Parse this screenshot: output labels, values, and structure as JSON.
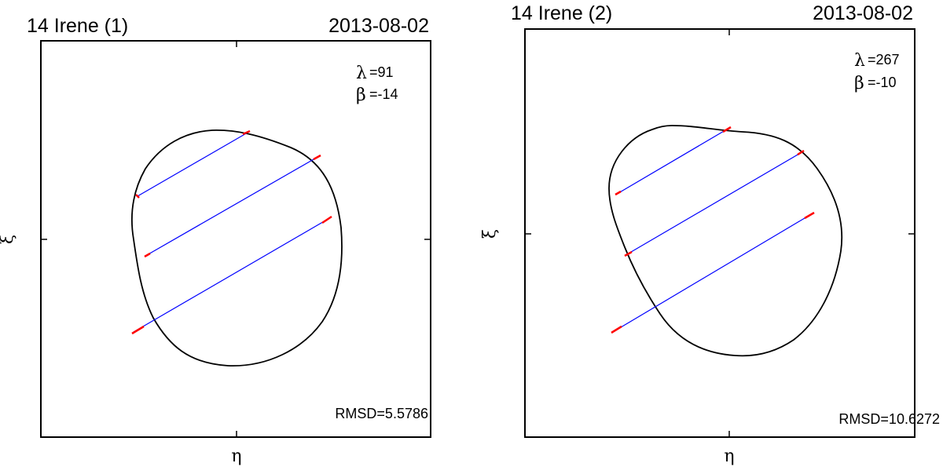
{
  "panels": [
    {
      "title": "14 Irene  (1)",
      "date": "2013-08-02",
      "lambda_symbol": "λ",
      "lambda_text": "=91",
      "beta_symbol": "β",
      "beta_text": "=-14",
      "rmsd": "RMSD=5.5786",
      "xlabel": "η",
      "ylabel": "ξ"
    },
    {
      "title": "14 Irene  (2)",
      "date": "2013-08-02",
      "lambda_symbol": "λ",
      "lambda_text": "=267",
      "beta_symbol": "β",
      "beta_text": "=-10",
      "rmsd": "RMSD=10.6272",
      "xlabel": "η",
      "ylabel": "ξ"
    }
  ],
  "colors": {
    "outline": "#000000",
    "chord": "#0000ff",
    "chord_end": "#ff0000"
  }
}
